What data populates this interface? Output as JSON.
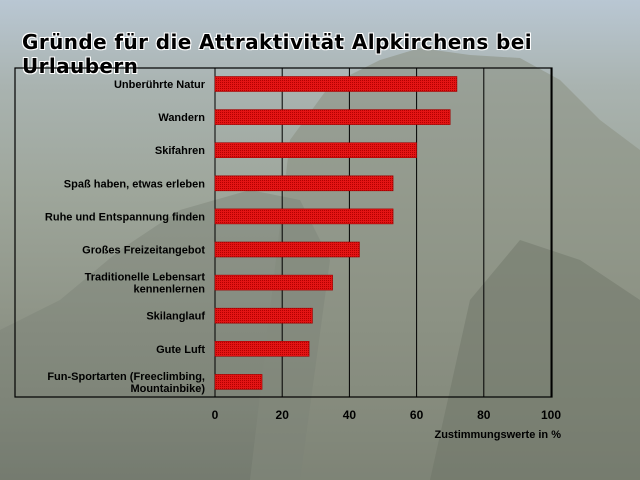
{
  "colors": {
    "bar": "#e10f0f",
    "bar_dark": "#a00000",
    "grid": "#000000"
  },
  "chart_data": {
    "type": "bar",
    "orientation": "horizontal",
    "title": "Gründe für die Attraktivität Alpkirchens bei Urlaubern",
    "xlabel": "Zustimmungswerte in %",
    "ylabel": "",
    "xlim": [
      0,
      100
    ],
    "xticks": [
      0,
      20,
      40,
      60,
      80,
      100
    ],
    "grid": true,
    "categories": [
      "Unberührte Natur",
      "Wandern",
      "Skifahren",
      "Spaß haben, etwas erleben",
      "Ruhe und Entspannung finden",
      "Großes Freizeitangebot",
      "Traditionelle Lebensart kennenlernen",
      "Skilanglauf",
      "Gute Luft",
      "Fun-Sportarten (Freeclimbing, Mountainbike)"
    ],
    "category_lines": [
      [
        "Unberührte Natur"
      ],
      [
        "Wandern"
      ],
      [
        "Skifahren"
      ],
      [
        "Spaß haben, etwas erleben"
      ],
      [
        "Ruhe und Entspannung finden"
      ],
      [
        "Großes Freizeitangebot"
      ],
      [
        "Traditionelle Lebensart",
        "kennenlernen"
      ],
      [
        "Skilanglauf"
      ],
      [
        "Gute Luft"
      ],
      [
        "Fun-Sportarten (Freeclimbing,",
        "Mountainbike)"
      ]
    ],
    "values": [
      72,
      70,
      60,
      53,
      53,
      43,
      35,
      29,
      28,
      14
    ]
  }
}
